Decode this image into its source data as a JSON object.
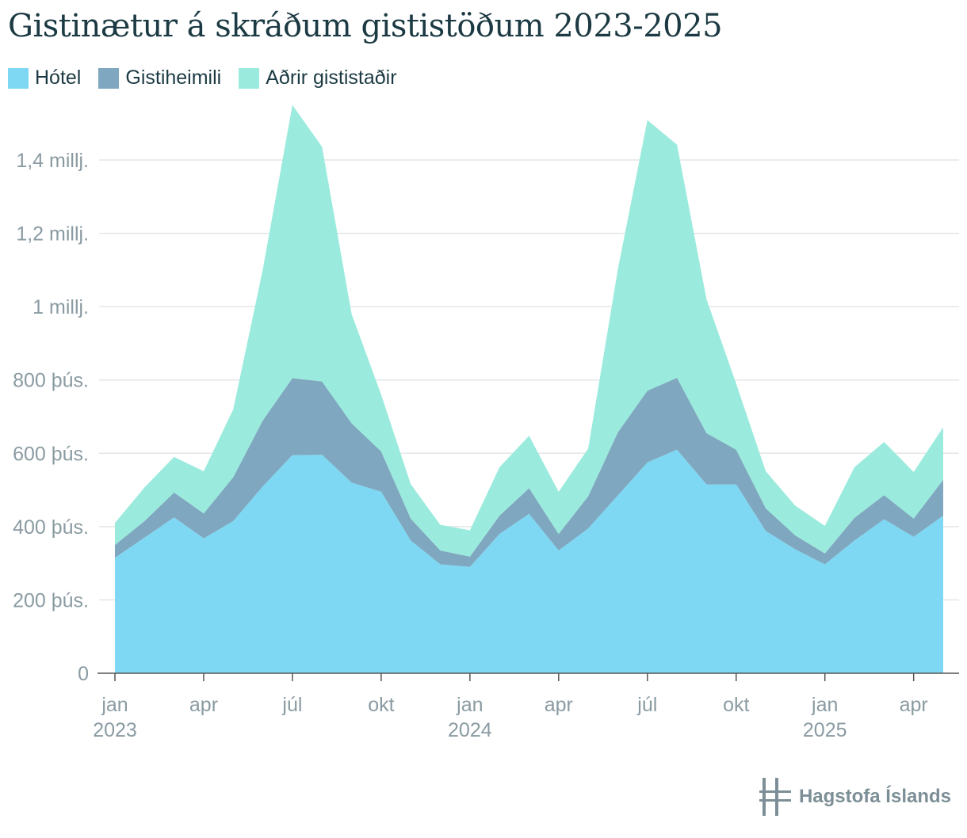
{
  "chart_data": {
    "type": "area",
    "stacked": true,
    "title": "Gistinætur á skráðum gististöðum 2023-2025",
    "xlabel": "",
    "ylabel": "",
    "x": [
      "2023-01",
      "2023-02",
      "2023-03",
      "2023-04",
      "2023-05",
      "2023-06",
      "2023-07",
      "2023-08",
      "2023-09",
      "2023-10",
      "2023-11",
      "2023-12",
      "2024-01",
      "2024-02",
      "2024-03",
      "2024-04",
      "2024-05",
      "2024-06",
      "2024-07",
      "2024-08",
      "2024-09",
      "2024-10",
      "2024-11",
      "2024-12",
      "2025-01",
      "2025-02",
      "2025-03",
      "2025-04",
      "2025-05"
    ],
    "series": [
      {
        "name": "Hótel",
        "color": "#7fd8f3",
        "values": [
          315000,
          370000,
          425000,
          368000,
          415000,
          510000,
          595000,
          596000,
          520000,
          495000,
          362000,
          297000,
          290000,
          380000,
          435000,
          335000,
          395000,
          485000,
          575000,
          610000,
          515000,
          515000,
          388000,
          338000,
          297000,
          362000,
          420000,
          372000,
          430000
        ]
      },
      {
        "name": "Gistiheimili",
        "color": "#7fa8c0",
        "values": [
          35000,
          45000,
          68000,
          68000,
          120000,
          180000,
          210000,
          200000,
          162000,
          110000,
          60000,
          38000,
          28000,
          50000,
          70000,
          45000,
          88000,
          172000,
          196000,
          196000,
          140000,
          95000,
          62000,
          38000,
          30000,
          62000,
          66000,
          50000,
          98000
        ]
      },
      {
        "name": "Aðrir gististaðir",
        "color": "#9aebdd",
        "values": [
          60000,
          92000,
          97000,
          115000,
          185000,
          412000,
          745000,
          640000,
          298000,
          155000,
          94000,
          70000,
          72000,
          132000,
          143000,
          115000,
          130000,
          445000,
          738000,
          636000,
          365000,
          180000,
          101000,
          81000,
          75000,
          138000,
          145000,
          127000,
          143000
        ]
      }
    ],
    "ylim": [
      0,
      1560000
    ],
    "yticks": [
      0,
      200000,
      400000,
      600000,
      800000,
      1000000,
      1200000,
      1400000
    ],
    "ytick_labels": [
      "0",
      "200 þús.",
      "400 þús.",
      "600 þús.",
      "800 þús.",
      "1 millj.",
      "1,2 millj.",
      "1,4 millj."
    ],
    "xticks": [
      {
        "index": 0,
        "label": "jan",
        "year": "2023"
      },
      {
        "index": 3,
        "label": "apr",
        "year": ""
      },
      {
        "index": 6,
        "label": "júl",
        "year": ""
      },
      {
        "index": 9,
        "label": "okt",
        "year": ""
      },
      {
        "index": 12,
        "label": "jan",
        "year": "2024"
      },
      {
        "index": 15,
        "label": "apr",
        "year": ""
      },
      {
        "index": 18,
        "label": "júl",
        "year": ""
      },
      {
        "index": 21,
        "label": "okt",
        "year": ""
      },
      {
        "index": 24,
        "label": "jan",
        "year": "2025"
      },
      {
        "index": 27,
        "label": "apr",
        "year": ""
      }
    ],
    "grid": true,
    "legend_position": "top-left"
  },
  "branding": {
    "logo_text": "Hagstofa Íslands",
    "logo_icon": "hagstofa-logo-icon"
  }
}
